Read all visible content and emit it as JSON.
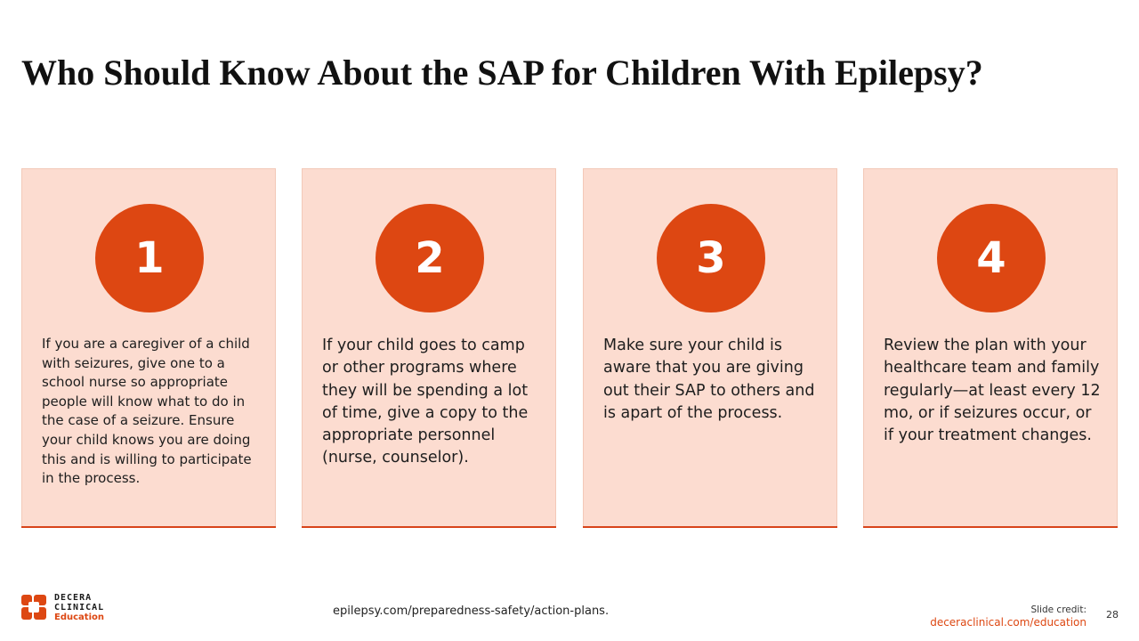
{
  "slide": {
    "title": "Who Should Know About the SAP for Children With Epilepsy?",
    "accent_color": "#dd4712",
    "card_bg_color": "#fcdcd0"
  },
  "cards": [
    {
      "number": "1",
      "text": "If you are a caregiver of a child with seizures, give one to a school nurse so appropriate people will know what to do in the case of a seizure. Ensure your child knows you are doing this and is willing to participate in the process."
    },
    {
      "number": "2",
      "text": "If your child goes to camp or other programs where they will be spending a lot of time, give a copy to the appropriate personnel (nurse, counselor)."
    },
    {
      "number": "3",
      "text": "Make sure your child is aware that you are giving out their SAP to others and is apart of the process."
    },
    {
      "number": "4",
      "text": "Review the plan with your healthcare team and family regularly—at least every 12 mo, or if seizures occur, or if your treatment changes."
    }
  ],
  "footer": {
    "logo": {
      "line1": "DECERA",
      "line2": "CLINICAL",
      "line3": "Education"
    },
    "reference": "epilepsy.com/preparedness-safety/action-plans.",
    "credit_label": "Slide credit:",
    "credit_link": "deceraclinical.com/education",
    "page_number": "28"
  }
}
